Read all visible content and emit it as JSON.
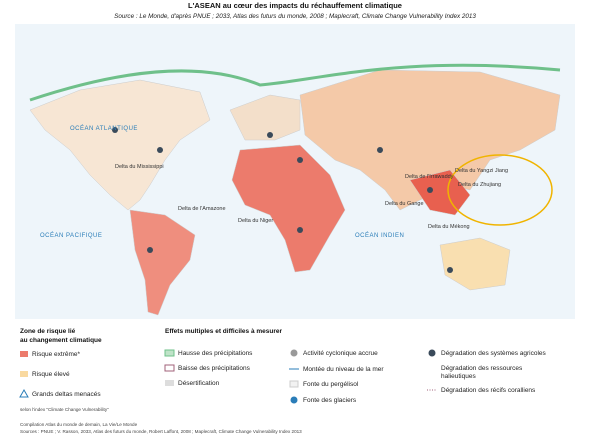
{
  "header": {
    "title": "L'ASEAN au cœur des impacts du réchauffement climatique",
    "source": "Source : Le Monde, d'après PNUE ; 2033, Atlas des futurs du monde, 2008 ; Maplecraft, Climate Change Vulnerability Index 2013"
  },
  "map": {
    "labels": [
      "OCÉAN ATLANTIQUE",
      "OCÉAN PACIFIQUE",
      "OCÉAN INDIEN",
      "Delta du Mississippi",
      "Delta de l'Amazone",
      "Delta du Niger",
      "Delta du Gange",
      "Delta du Yangzi Jiang",
      "Delta du Zhujiang",
      "Delta de l'Irrawaddy",
      "Delta du Mékong"
    ]
  },
  "legend": {
    "risk": {
      "title": [
        "Zone de risque lié",
        "au changement climatique"
      ],
      "items": [
        "Risque extrême*",
        "Risque élevé",
        "Grands deltas menacés"
      ]
    },
    "effects": {
      "title": "Effets multiples et difficiles à mesurer",
      "items": [
        "Hausse des précipitations",
        "Baisse des précipitations",
        "Désertification",
        "Activité cyclonique accrue",
        "Montée du niveau de la mer",
        "Fonte du pergélisol",
        "Fonte des glaciers",
        "Dégradation des systèmes agricoles",
        [
          "Dégradation des ressources",
          "halieutiques"
        ],
        "Dégradation des récifs coralliens"
      ]
    }
  },
  "footer": {
    "note": "selon l'index \"Climate Change Vulnerability\"",
    "compilation": "Compilation Atlas du monde de demain, La Vie/Le Monde",
    "sources": "Sources : PNUE ; V. Rasson, 2033, Atlas des futurs du monde, Robert Laffont, 2008 ; Maplecraft, Climate Change Vulnerability Index 2013"
  }
}
